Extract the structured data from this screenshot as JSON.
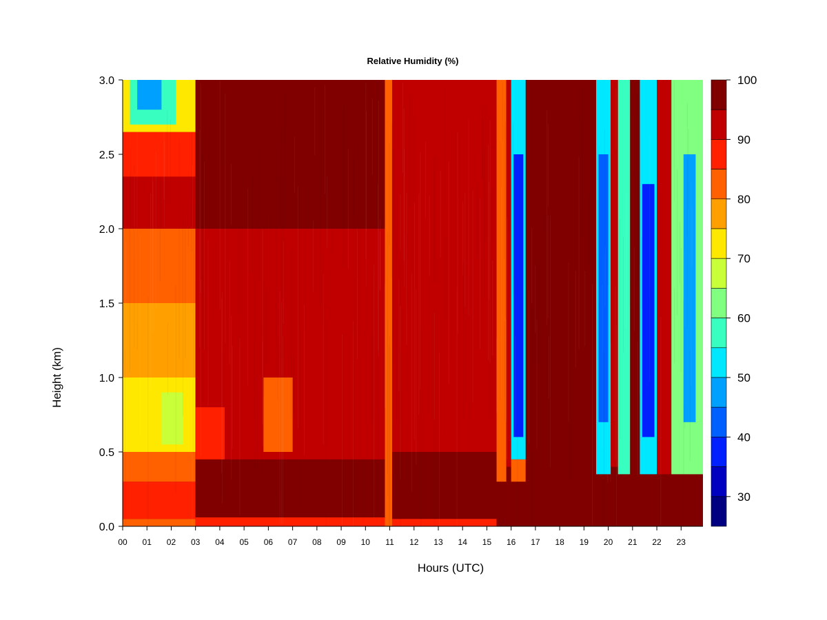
{
  "chart_data": {
    "type": "heatmap",
    "title": "Relative Humidity (%)",
    "xlabel": "Hours (UTC)",
    "ylabel": "Height (km)",
    "x_ticks": [
      "00",
      "01",
      "02",
      "03",
      "04",
      "05",
      "06",
      "07",
      "08",
      "09",
      "10",
      "11",
      "12",
      "13",
      "14",
      "15",
      "16",
      "17",
      "18",
      "19",
      "20",
      "21",
      "22",
      "23"
    ],
    "xlim": [
      0,
      23.9
    ],
    "y_ticks": [
      "0.0",
      "0.5",
      "1.0",
      "1.5",
      "2.0",
      "2.5",
      "3.0"
    ],
    "ylim": [
      0,
      3.0
    ],
    "colorbar": {
      "labels": [
        "100",
        "90",
        "80",
        "70",
        "60",
        "50",
        "40",
        "30"
      ],
      "range": [
        25,
        100
      ],
      "levels": [
        {
          "min": 95,
          "max": 100,
          "color": "#800000"
        },
        {
          "min": 90,
          "max": 95,
          "color": "#c00000"
        },
        {
          "min": 85,
          "max": 90,
          "color": "#ff2000"
        },
        {
          "min": 80,
          "max": 85,
          "color": "#ff6000"
        },
        {
          "min": 75,
          "max": 80,
          "color": "#ffa000"
        },
        {
          "min": 70,
          "max": 75,
          "color": "#ffe800"
        },
        {
          "min": 65,
          "max": 70,
          "color": "#c8ff38"
        },
        {
          "min": 60,
          "max": 65,
          "color": "#80ff80"
        },
        {
          "min": 55,
          "max": 60,
          "color": "#38ffc0"
        },
        {
          "min": 50,
          "max": 55,
          "color": "#00e8ff"
        },
        {
          "min": 45,
          "max": 50,
          "color": "#00a0ff"
        },
        {
          "min": 40,
          "max": 45,
          "color": "#0060ff"
        },
        {
          "min": 35,
          "max": 40,
          "color": "#0020ff"
        },
        {
          "min": 30,
          "max": 35,
          "color": "#0000c0"
        },
        {
          "min": 25,
          "max": 30,
          "color": "#000080"
        }
      ]
    },
    "regions": [
      {
        "x": [
          0,
          3
        ],
        "y": [
          0,
          0.05
        ],
        "rh": 82
      },
      {
        "x": [
          0,
          3
        ],
        "y": [
          0.05,
          0.3
        ],
        "rh": 87
      },
      {
        "x": [
          0,
          3
        ],
        "y": [
          0.3,
          0.5
        ],
        "rh": 80
      },
      {
        "x": [
          0,
          3
        ],
        "y": [
          0.5,
          1.0
        ],
        "rh": 71
      },
      {
        "x": [
          0,
          3
        ],
        "y": [
          1.0,
          1.5
        ],
        "rh": 76
      },
      {
        "x": [
          0,
          3
        ],
        "y": [
          1.5,
          2.0
        ],
        "rh": 82
      },
      {
        "x": [
          0,
          3
        ],
        "y": [
          2.0,
          2.35
        ],
        "rh": 93
      },
      {
        "x": [
          0,
          3
        ],
        "y": [
          2.35,
          2.65
        ],
        "rh": 87
      },
      {
        "x": [
          0,
          3
        ],
        "y": [
          2.65,
          3.0
        ],
        "rh": 72
      },
      {
        "x": [
          0.3,
          2.2
        ],
        "y": [
          2.7,
          3.0
        ],
        "rh": 56
      },
      {
        "x": [
          0.6,
          1.6
        ],
        "y": [
          2.8,
          3.0
        ],
        "rh": 48
      },
      {
        "x": [
          1.6,
          2.5
        ],
        "y": [
          0.55,
          0.9
        ],
        "rh": 66
      },
      {
        "x": [
          3,
          11
        ],
        "y": [
          0,
          0.06
        ],
        "rh": 88
      },
      {
        "x": [
          3,
          11
        ],
        "y": [
          0.06,
          0.45
        ],
        "rh": 97
      },
      {
        "x": [
          3,
          11
        ],
        "y": [
          0.45,
          2.0
        ],
        "rh": 91
      },
      {
        "x": [
          3,
          11
        ],
        "y": [
          2.0,
          3.0
        ],
        "rh": 97
      },
      {
        "x": [
          5.8,
          7.0
        ],
        "y": [
          0.5,
          1.0
        ],
        "rh": 83
      },
      {
        "x": [
          3,
          4.2
        ],
        "y": [
          0.45,
          0.8
        ],
        "rh": 87
      },
      {
        "x": [
          10.8,
          11.1
        ],
        "y": [
          0,
          3.0
        ],
        "rh": 84
      },
      {
        "x": [
          11.1,
          15.4
        ],
        "y": [
          0,
          0.05
        ],
        "rh": 88
      },
      {
        "x": [
          11.1,
          15.4
        ],
        "y": [
          0.05,
          0.5
        ],
        "rh": 97
      },
      {
        "x": [
          11.1,
          15.4
        ],
        "y": [
          0.5,
          3.0
        ],
        "rh": 93
      },
      {
        "x": [
          15.4,
          17.0
        ],
        "y": [
          0,
          0.3
        ],
        "rh": 97
      },
      {
        "x": [
          15.4,
          15.8
        ],
        "y": [
          0.3,
          3.0
        ],
        "rh": 80
      },
      {
        "x": [
          15.8,
          16.0
        ],
        "y": [
          0.4,
          3.0
        ],
        "rh": 92
      },
      {
        "x": [
          16.0,
          16.6
        ],
        "y": [
          0.3,
          0.45
        ],
        "rh": 80
      },
      {
        "x": [
          16.0,
          16.6
        ],
        "y": [
          0.45,
          3.0
        ],
        "rh": 50
      },
      {
        "x": [
          16.1,
          16.5
        ],
        "y": [
          0.6,
          2.5
        ],
        "rh": 38
      },
      {
        "x": [
          16.6,
          19.5
        ],
        "y": [
          0,
          3.0
        ],
        "rh": 97
      },
      {
        "x": [
          19.5,
          23.9
        ],
        "y": [
          0,
          0.35
        ],
        "rh": 96
      },
      {
        "x": [
          19.5,
          20.1
        ],
        "y": [
          0.35,
          3.0
        ],
        "rh": 52
      },
      {
        "x": [
          19.6,
          20.0
        ],
        "y": [
          0.7,
          2.5
        ],
        "rh": 40
      },
      {
        "x": [
          20.1,
          20.4
        ],
        "y": [
          0.4,
          3.0
        ],
        "rh": 92
      },
      {
        "x": [
          20.4,
          20.9
        ],
        "y": [
          0.35,
          3.0
        ],
        "rh": 55
      },
      {
        "x": [
          20.9,
          21.3
        ],
        "y": [
          0.35,
          3.0
        ],
        "rh": 95
      },
      {
        "x": [
          21.3,
          22.0
        ],
        "y": [
          0.35,
          3.0
        ],
        "rh": 50
      },
      {
        "x": [
          21.4,
          21.9
        ],
        "y": [
          0.6,
          2.3
        ],
        "rh": 38
      },
      {
        "x": [
          22.0,
          22.6
        ],
        "y": [
          0.35,
          3.0
        ],
        "rh": 90
      },
      {
        "x": [
          22.6,
          23.9
        ],
        "y": [
          0.35,
          3.0
        ],
        "rh": 60
      },
      {
        "x": [
          23.1,
          23.6
        ],
        "y": [
          0.7,
          2.5
        ],
        "rh": 45
      }
    ]
  }
}
